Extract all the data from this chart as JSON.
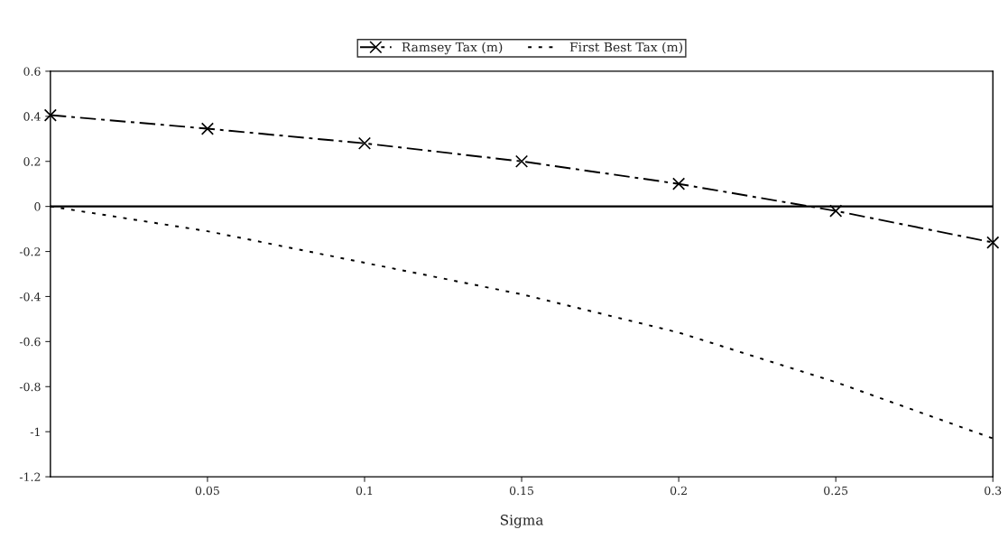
{
  "chart_data": {
    "type": "line",
    "xlabel": "Sigma",
    "x": [
      0,
      0.05,
      0.1,
      0.15,
      0.2,
      0.25,
      0.3
    ],
    "series": [
      {
        "name": "Ramsey Tax (m)",
        "color": "#000000",
        "values": [
          0.405,
          0.345,
          0.28,
          0.2,
          0.1,
          -0.02,
          -0.16
        ],
        "marker": "cross",
        "line_style": "dashed"
      },
      {
        "name": "First Best Tax (m)",
        "color": "#000000",
        "values": [
          0,
          -0.11,
          -0.25,
          -0.39,
          -0.56,
          -0.78,
          -1.03
        ],
        "marker": "none",
        "line_style": "dotted"
      }
    ],
    "xlim": [
      0,
      0.3
    ],
    "xticks": [
      0.05,
      0.1,
      0.15,
      0.2,
      0.25,
      0.3
    ],
    "ylim": [
      -1.2,
      0.6
    ],
    "yticks": [
      0.6,
      0.4,
      0.2,
      0,
      -0.2,
      -0.4,
      -0.6,
      -0.8,
      -1,
      -1.2
    ],
    "ref_lines": [
      {
        "axis": "y",
        "value": 0,
        "color": "#000000",
        "line_style": "solid"
      }
    ],
    "grid": false,
    "legend": "top"
  }
}
